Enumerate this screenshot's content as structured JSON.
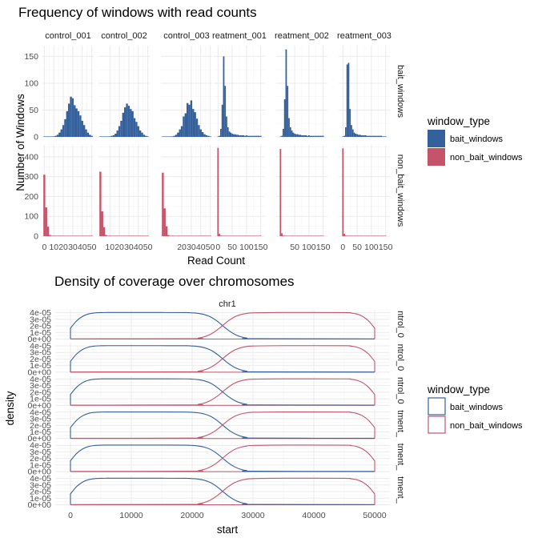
{
  "colors": {
    "bait": "#34609c",
    "non_bait": "#c5546a",
    "grid_major": "#ebebeb",
    "grid_minor": "#f4f4f4"
  },
  "chart_data": [
    {
      "type": "bar",
      "title": "Frequency of windows with read counts",
      "xlabel": "Read Count",
      "ylabel": "Number of Windows",
      "facet_columns": [
        "control_001",
        "control_002",
        "control_003",
        "reatment_001",
        "reatment_002",
        "reatment_003"
      ],
      "facet_rows": [
        "bait_windows",
        "non_bait_windows"
      ],
      "grid": true,
      "legend": {
        "title": "window_type",
        "position": "right",
        "entries": [
          "bait_windows",
          "non_bait_windows"
        ]
      },
      "row_axes": [
        {
          "ylim": [
            0,
            170
          ],
          "ticks": [
            "0",
            "50",
            "100",
            "150"
          ],
          "tick_values": [
            0,
            50,
            100,
            150
          ]
        },
        {
          "ylim": [
            0,
            460
          ],
          "ticks": [
            "0",
            "100",
            "200",
            "300",
            "400"
          ],
          "tick_values": [
            0,
            100,
            200,
            300,
            400
          ]
        }
      ],
      "column_axes": [
        {
          "xlim": [
            -2,
            52
          ],
          "ticks": [
            "0",
            "10",
            "20",
            "30",
            "40",
            "50"
          ],
          "tick_values": [
            0,
            10,
            20,
            30,
            40,
            50
          ]
        },
        {
          "xlim": [
            -2,
            52
          ],
          "ticks": [
            "10",
            "20",
            "30",
            "40",
            "50"
          ],
          "tick_values": [
            10,
            20,
            30,
            40,
            50
          ]
        },
        {
          "xlim": [
            -2,
            52
          ],
          "ticks": [
            "20",
            "30",
            "40",
            "50"
          ],
          "tick_values": [
            20,
            30,
            40,
            50
          ]
        },
        {
          "xlim": [
            -15,
            165
          ],
          "ticks": [
            "0",
            "50",
            "100",
            "150"
          ],
          "tick_values": [
            0,
            50,
            100,
            150
          ]
        },
        {
          "xlim": [
            -15,
            165
          ],
          "ticks": [
            "50",
            "100",
            "150"
          ],
          "tick_values": [
            50,
            100,
            150
          ]
        },
        {
          "xlim": [
            -15,
            165
          ],
          "ticks": [
            "0",
            "50",
            "100",
            "150"
          ],
          "tick_values": [
            0,
            50,
            100,
            150
          ]
        }
      ],
      "panels": [
        {
          "row": 0,
          "col": 0,
          "bin_width": 2,
          "x": [
            0,
            2,
            4,
            6,
            8,
            10,
            12,
            14,
            16,
            18,
            20,
            22,
            24,
            26,
            28,
            30,
            32,
            34,
            36,
            38,
            40,
            42,
            44,
            46,
            48,
            50
          ],
          "values": [
            0,
            0,
            0,
            0,
            0,
            1,
            2,
            4,
            8,
            14,
            22,
            33,
            48,
            62,
            75,
            72,
            59,
            53,
            48,
            40,
            30,
            22,
            14,
            8,
            4,
            2
          ]
        },
        {
          "row": 0,
          "col": 1,
          "bin_width": 2,
          "x": [
            0,
            2,
            4,
            6,
            8,
            10,
            12,
            14,
            16,
            18,
            20,
            22,
            24,
            26,
            28,
            30,
            32,
            34,
            36,
            38,
            40,
            42,
            44,
            46,
            48,
            50
          ],
          "values": [
            0,
            0,
            0,
            0,
            0,
            1,
            2,
            3,
            6,
            12,
            20,
            30,
            45,
            55,
            62,
            58,
            52,
            48,
            35,
            28,
            20,
            12,
            8,
            4,
            2,
            1
          ]
        },
        {
          "row": 0,
          "col": 2,
          "bin_width": 2,
          "x": [
            0,
            2,
            4,
            6,
            8,
            10,
            12,
            14,
            16,
            18,
            20,
            22,
            24,
            26,
            28,
            30,
            32,
            34,
            36,
            38,
            40,
            42,
            44,
            46,
            48,
            50
          ],
          "values": [
            0,
            0,
            0,
            0,
            0,
            1,
            2,
            4,
            8,
            14,
            20,
            38,
            44,
            63,
            60,
            68,
            52,
            46,
            34,
            22,
            14,
            9,
            5,
            3,
            2,
            1
          ]
        },
        {
          "row": 0,
          "col": 3,
          "bin_width": 5,
          "x": [
            0,
            5,
            10,
            15,
            20,
            25,
            30,
            35,
            40,
            45,
            50,
            55,
            60,
            65,
            70,
            75,
            80,
            85,
            90,
            95,
            100,
            105,
            110,
            115,
            120,
            125,
            130,
            135,
            140,
            145,
            150
          ],
          "values": [
            0,
            2,
            15,
            60,
            150,
            95,
            38,
            18,
            10,
            8,
            6,
            5,
            5,
            4,
            4,
            3,
            3,
            3,
            3,
            2,
            3,
            2,
            2,
            2,
            2,
            2,
            2,
            2,
            2,
            2,
            2
          ]
        },
        {
          "row": 0,
          "col": 4,
          "bin_width": 5,
          "x": [
            0,
            5,
            10,
            15,
            20,
            25,
            30,
            35,
            40,
            45,
            50,
            55,
            60,
            65,
            70,
            75,
            80,
            85,
            90,
            95,
            100,
            105,
            110,
            115,
            120,
            125,
            130,
            135,
            140,
            145,
            150
          ],
          "values": [
            0,
            2,
            15,
            70,
            163,
            95,
            35,
            18,
            12,
            8,
            6,
            5,
            5,
            4,
            4,
            3,
            3,
            3,
            3,
            2,
            3,
            2,
            2,
            2,
            2,
            2,
            2,
            2,
            2,
            2,
            2
          ]
        },
        {
          "row": 0,
          "col": 5,
          "bin_width": 5,
          "x": [
            0,
            5,
            10,
            15,
            20,
            25,
            30,
            35,
            40,
            45,
            50,
            55,
            60,
            65,
            70,
            75,
            80,
            85,
            90,
            95,
            100,
            105,
            110,
            115,
            120,
            125,
            130,
            135,
            140,
            145,
            150
          ],
          "values": [
            0,
            2,
            18,
            135,
            138,
            52,
            22,
            14,
            8,
            6,
            5,
            4,
            4,
            3,
            3,
            3,
            3,
            2,
            2,
            2,
            2,
            2,
            2,
            2,
            2,
            2,
            2,
            2,
            1,
            1,
            1
          ]
        },
        {
          "row": 1,
          "col": 0,
          "bin_width": 2,
          "x": [
            0,
            2,
            4,
            6,
            8,
            10,
            12,
            14,
            16,
            18,
            20,
            22,
            24,
            26,
            28,
            30,
            32,
            34,
            36,
            38,
            40,
            42,
            44,
            46,
            48,
            50
          ],
          "values": [
            310,
            145,
            48,
            6,
            2,
            1,
            0,
            0,
            0,
            0,
            0,
            0,
            0,
            0,
            0,
            0,
            0,
            0,
            0,
            0,
            0,
            0,
            0,
            0,
            0,
            0
          ]
        },
        {
          "row": 1,
          "col": 1,
          "bin_width": 2,
          "x": [
            0,
            2,
            4,
            6,
            8,
            10,
            12,
            14,
            16,
            18,
            20,
            22,
            24,
            26,
            28,
            30,
            32,
            34,
            36,
            38,
            40,
            42,
            44,
            46,
            48,
            50
          ],
          "values": [
            325,
            125,
            45,
            6,
            2,
            1,
            0,
            0,
            0,
            0,
            0,
            0,
            0,
            0,
            0,
            0,
            0,
            0,
            0,
            0,
            0,
            0,
            0,
            0,
            0,
            0
          ]
        },
        {
          "row": 1,
          "col": 2,
          "bin_width": 2,
          "x": [
            0,
            2,
            4,
            6,
            8,
            10,
            12,
            14,
            16,
            18,
            20,
            22,
            24,
            26,
            28,
            30,
            32,
            34,
            36,
            38,
            40,
            42,
            44,
            46,
            48,
            50
          ],
          "values": [
            320,
            140,
            50,
            6,
            2,
            1,
            0,
            0,
            0,
            0,
            0,
            0,
            0,
            0,
            0,
            0,
            0,
            0,
            0,
            0,
            0,
            0,
            0,
            0,
            0,
            0
          ]
        },
        {
          "row": 1,
          "col": 3,
          "bin_width": 5,
          "x": [
            0,
            5,
            10,
            15,
            20,
            25,
            30,
            35,
            40,
            45,
            50,
            55,
            60,
            65,
            70,
            75,
            80,
            85,
            90,
            95,
            100,
            105,
            110,
            115,
            120,
            125,
            130,
            135,
            140,
            145,
            150
          ],
          "values": [
            445,
            12,
            3,
            0,
            0,
            0,
            0,
            0,
            0,
            0,
            0,
            0,
            0,
            0,
            0,
            0,
            0,
            0,
            0,
            0,
            0,
            0,
            0,
            0,
            0,
            0,
            0,
            0,
            0,
            0,
            0
          ]
        },
        {
          "row": 1,
          "col": 4,
          "bin_width": 5,
          "x": [
            0,
            5,
            10,
            15,
            20,
            25,
            30,
            35,
            40,
            45,
            50,
            55,
            60,
            65,
            70,
            75,
            80,
            85,
            90,
            95,
            100,
            105,
            110,
            115,
            120,
            125,
            130,
            135,
            140,
            145,
            150
          ],
          "values": [
            440,
            15,
            3,
            0,
            0,
            0,
            0,
            0,
            0,
            0,
            0,
            0,
            0,
            0,
            0,
            0,
            0,
            0,
            0,
            0,
            0,
            0,
            0,
            0,
            0,
            0,
            0,
            0,
            0,
            0,
            0
          ]
        },
        {
          "row": 1,
          "col": 5,
          "bin_width": 5,
          "x": [
            0,
            5,
            10,
            15,
            20,
            25,
            30,
            35,
            40,
            45,
            50,
            55,
            60,
            65,
            70,
            75,
            80,
            85,
            90,
            95,
            100,
            105,
            110,
            115,
            120,
            125,
            130,
            135,
            140,
            145,
            150
          ],
          "values": [
            443,
            12,
            3,
            0,
            0,
            0,
            0,
            0,
            0,
            0,
            0,
            0,
            0,
            0,
            0,
            0,
            0,
            0,
            0,
            0,
            0,
            0,
            0,
            0,
            0,
            0,
            0,
            0,
            0,
            0,
            0
          ]
        }
      ]
    },
    {
      "type": "line",
      "title": "Density of coverage over chromosomes",
      "xlabel": "start",
      "ylabel": "density",
      "facet_column": "chr1",
      "facet_rows": [
        "ntrol_0",
        "ntrol_0",
        "ntrol_0",
        "tment_",
        "tment_",
        "tment_"
      ],
      "xlim": [
        -2500,
        52500
      ],
      "x_ticks": [
        "0",
        "10000",
        "20000",
        "30000",
        "40000",
        "50000"
      ],
      "x_tick_values": [
        0,
        10000,
        20000,
        30000,
        40000,
        50000
      ],
      "ylim": [
        0,
        4.5e-05
      ],
      "y_ticks": [
        "0e+00",
        "1e-05",
        "2e-05",
        "3e-05",
        "4e-05"
      ],
      "y_tick_values": [
        0,
        1e-05,
        2e-05,
        3e-05,
        4e-05
      ],
      "grid": true,
      "legend": {
        "title": "window_type",
        "position": "right",
        "entries": [
          "bait_windows",
          "non_bait_windows"
        ]
      },
      "series": [
        {
          "name": "bait_windows",
          "x": [
            0,
            1000,
            2000,
            3000,
            4000,
            5000,
            6000,
            10000,
            15000,
            19000,
            20000,
            21000,
            22000,
            23000,
            24000,
            25000,
            26000,
            27000,
            28000,
            29000,
            30000,
            50000
          ],
          "values": [
            1.65e-05,
            2.75e-05,
            3.45e-05,
            3.82e-05,
            3.97e-05,
            4.02e-05,
            4.03e-05,
            4.03e-05,
            4.03e-05,
            4.02e-05,
            3.98e-05,
            3.9e-05,
            3.72e-05,
            3.38e-05,
            2.8e-05,
            2.05e-05,
            1.3e-05,
            7.2e-06,
            3.5e-06,
            1.5e-06,
            6e-07,
            3e-07
          ]
        },
        {
          "name": "non_bait_windows",
          "x": [
            0,
            20000,
            21000,
            22000,
            23000,
            24000,
            25000,
            26000,
            27000,
            28000,
            29000,
            30000,
            35000,
            45000,
            46000,
            47000,
            48000,
            49000,
            50000
          ],
          "values": [
            3e-07,
            6e-07,
            1.5e-06,
            3.5e-06,
            7.2e-06,
            1.3e-05,
            2.05e-05,
            2.8e-05,
            3.38e-05,
            3.72e-05,
            3.9e-05,
            3.98e-05,
            4.03e-05,
            4.02e-05,
            3.97e-05,
            3.82e-05,
            3.45e-05,
            2.75e-05,
            1.65e-05
          ]
        }
      ]
    }
  ]
}
